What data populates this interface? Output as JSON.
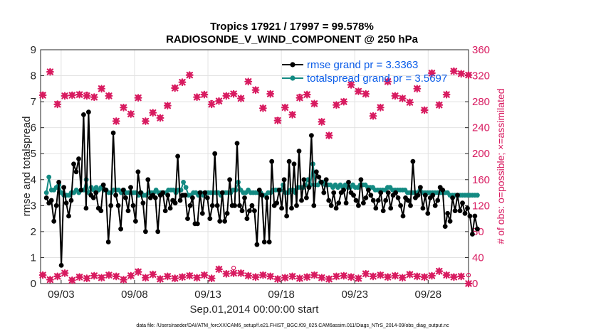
{
  "chart_data": {
    "type": "line",
    "title_line1": "Tropics 17921 / 17997 = 99.578%",
    "title_line2": "RADIOSONDE_V_WIND_COMPONENT @ 250 hPa",
    "xlabel": "Sep.01,2014 00:00:00 start",
    "ylabel_left": "rmse and totalspread",
    "ylabel_right": "# of obs: o=possible; ×=assimilated",
    "footer": "data file: /Users/raeder/DAI/ATM_forcXX/CAM6_setup/f.e21.FHIST_BGC.f09_025.CAM6assim.011/Diags_NTrS_2014-09/obs_diag_output.nc",
    "xlim": [
      1.6,
      30.75
    ],
    "ylim_left": [
      0,
      9
    ],
    "ylim_right": [
      0,
      360
    ],
    "x_ticks": [
      3,
      8,
      13,
      18,
      23,
      28
    ],
    "x_tick_labels": [
      "09/03",
      "09/08",
      "09/13",
      "09/18",
      "09/23",
      "09/28"
    ],
    "y_ticks_left": [
      "0",
      "1",
      "2",
      "3",
      "4",
      "5",
      "6",
      "7",
      "8",
      "9"
    ],
    "y_ticks_right": [
      "0",
      "40",
      "80",
      "120",
      "160",
      "200",
      "240",
      "280",
      "320",
      "360"
    ],
    "legend_location": "top-right",
    "colors": {
      "rmse": "#000000",
      "spread": "#138a82",
      "obs": "#d81b60",
      "legend_text": "#0a5ce8",
      "grid": "#e2e2e2"
    },
    "series": [
      {
        "name": "rmse grand pr = 3.3363",
        "values": [
          3.3,
          3.1,
          3.2,
          2.4,
          3.0,
          3.9,
          0.7,
          3.7,
          3.1,
          2.6,
          3.2,
          4.6,
          4.3,
          4.8,
          3.6,
          6.5,
          2.9,
          6.6,
          3.4,
          3.3,
          3.5,
          2.9,
          2.8,
          3.8,
          3.6,
          1.6,
          3.0,
          5.8,
          3.4,
          3.0,
          2.1,
          3.6,
          3.3,
          2.8,
          3.7,
          3.0,
          2.4,
          4.3,
          3.5,
          3.1,
          2.0,
          4.0,
          3.3,
          3.4,
          3.3,
          2.0,
          3.4,
          3.5,
          2.8,
          3.4,
          2.9,
          3.2,
          3.1,
          4.9,
          3.2,
          3.4,
          3.4,
          2.5,
          3.0,
          3.3,
          2.3,
          2.3,
          3.5,
          2.7,
          3.5,
          3.3,
          2.5,
          3.0,
          5.0,
          3.0,
          2.4,
          3.5,
          2.4,
          2.7,
          4.0,
          3.0,
          3.0,
          5.4,
          3.0,
          2.8,
          3.3,
          2.5,
          2.8,
          3.0,
          2.8,
          1.5,
          3.6,
          3.4,
          1.6,
          3.3,
          1.6,
          4.7,
          3.0,
          3.1,
          3.6,
          2.9,
          4.0,
          2.6,
          4.7,
          2.9,
          4.6,
          3.0,
          5.1,
          3.2,
          4.0,
          3.3,
          3.7,
          5.7,
          3.0,
          4.3,
          4.1,
          3.9,
          3.5,
          4.0,
          3.2,
          3.0,
          3.5,
          2.9,
          3.1,
          3.5,
          3.6,
          3.1,
          3.9,
          3.5,
          3.4,
          3.2,
          3.0,
          4.0,
          3.1,
          3.3,
          3.6,
          3.4,
          3.2,
          2.9,
          3.2,
          3.5,
          2.8,
          3.2,
          3.5,
          2.9,
          3.4,
          3.5,
          3.3,
          3.0,
          2.6,
          3.3,
          3.2,
          3.0,
          4.7,
          3.3,
          3.4,
          3.7,
          2.9,
          3.4,
          2.7,
          3.3,
          3.4,
          3.0,
          3.2,
          3.7,
          3.6,
          2.2,
          2.7,
          2.4,
          3.3,
          2.8,
          3.4,
          2.8,
          3.1,
          2.7,
          2.9,
          2.6,
          1.9,
          2.6,
          2.1
        ]
      },
      {
        "name": "totalspread grand pr = 3.5697",
        "values": [
          3.5,
          4.1,
          3.6,
          3.6,
          3.7,
          3.8,
          3.5,
          3.4,
          3.4,
          3.4,
          3.5,
          3.5,
          3.6,
          3.5,
          3.6,
          3.6,
          4.0,
          3.5,
          3.7,
          3.6,
          3.7,
          3.6,
          3.7,
          3.6,
          3.6,
          3.5,
          3.5,
          3.6,
          3.6,
          3.6,
          3.5,
          3.6,
          3.5,
          3.5,
          3.5,
          3.5,
          3.5,
          3.4,
          3.5,
          3.4,
          3.4,
          3.5,
          3.5,
          3.5,
          3.6,
          3.5,
          3.5,
          3.5,
          3.5,
          3.6,
          3.6,
          3.6,
          3.5,
          3.6,
          3.6,
          3.9,
          3.7,
          3.4,
          3.4,
          3.5,
          3.5,
          3.4,
          3.5,
          3.4,
          3.5,
          3.5,
          3.5,
          3.5,
          3.5,
          3.5,
          3.4,
          3.5,
          3.5,
          3.5,
          3.5,
          3.6,
          3.6,
          3.9,
          3.6,
          3.5,
          3.5,
          3.6,
          3.5,
          3.5,
          3.5,
          3.5,
          3.5,
          3.4,
          3.4,
          3.5,
          3.5,
          3.6,
          3.6,
          3.6,
          3.6,
          3.8,
          3.5,
          3.5,
          3.6,
          3.6,
          3.5,
          3.7,
          3.7,
          3.7,
          3.8,
          4.0,
          3.8,
          4.6,
          3.8,
          3.8,
          3.9,
          3.9,
          3.8,
          3.8,
          3.8,
          3.7,
          3.8,
          3.7,
          3.8,
          3.7,
          3.8,
          3.7,
          3.7,
          3.8,
          3.7,
          3.7,
          3.8,
          3.8,
          3.8,
          3.7,
          3.7,
          3.7,
          3.6,
          3.6,
          3.6,
          3.6,
          3.6,
          3.7,
          3.7,
          3.6,
          3.6,
          3.6,
          3.6,
          3.6,
          3.6,
          3.5,
          3.5,
          3.5,
          3.5,
          3.5,
          3.6,
          3.5,
          3.5,
          3.5,
          3.5,
          3.5,
          3.5,
          3.5,
          3.5,
          3.5,
          3.5,
          3.5,
          3.4,
          3.4,
          3.4,
          3.4,
          3.4,
          3.4,
          3.4,
          3.4,
          3.4,
          3.4,
          3.4,
          3.4
        ]
      },
      {
        "name": "obs possible (daily top)",
        "x": [
          1.75,
          2.25,
          2.75,
          3.25,
          3.75,
          4.25,
          4.75,
          5.25,
          5.75,
          6.25,
          6.75,
          7.25,
          7.75,
          8.25,
          8.75,
          9.25,
          9.75,
          10.25,
          10.75,
          11.25,
          11.75,
          12.25,
          12.75,
          13.25,
          13.75,
          14.25,
          14.75,
          15.25,
          15.75,
          16.25,
          16.75,
          17.25,
          17.75,
          18.25,
          18.75,
          19.25,
          19.75,
          20.25,
          20.75,
          21.25,
          21.75,
          22.25,
          22.75,
          23.25,
          23.75,
          24.25,
          24.75,
          25.25,
          25.75,
          26.25,
          26.75,
          27.25,
          27.75,
          28.25,
          28.75,
          29.25,
          29.75,
          30.25,
          30.75
        ],
        "values": [
          292,
          327,
          278,
          290,
          291,
          292,
          292,
          288,
          301,
          290,
          251,
          272,
          262,
          287,
          251,
          264,
          256,
          275,
          302,
          311,
          322,
          288,
          292,
          279,
          282,
          290,
          293,
          286,
          312,
          299,
          271,
          293,
          253,
          272,
          261,
          289,
          292,
          278,
          250,
          229,
          276,
          281,
          307,
          297,
          293,
          259,
          272,
          312,
          290,
          286,
          280,
          301,
          268,
          325,
          276,
          292,
          328,
          324,
          322
        ]
      },
      {
        "name": "obs assimilated (daily top)",
        "x": [
          1.75,
          2.25,
          2.75,
          3.25,
          3.75,
          4.25,
          4.75,
          5.25,
          5.75,
          6.25,
          6.75,
          7.25,
          7.75,
          8.25,
          8.75,
          9.25,
          9.75,
          10.25,
          10.75,
          11.25,
          11.75,
          12.25,
          12.75,
          13.25,
          13.75,
          14.25,
          14.75,
          15.25,
          15.75,
          16.25,
          16.75,
          17.25,
          17.75,
          18.25,
          18.75,
          19.25,
          19.75,
          20.25,
          20.75,
          21.25,
          21.75,
          22.25,
          22.75,
          23.25,
          23.75,
          24.25,
          24.75,
          25.25,
          25.75,
          26.25,
          26.75,
          27.25,
          27.75,
          28.25,
          28.75,
          29.25,
          29.75,
          30.25,
          30.75
        ],
        "values": [
          290,
          326,
          276,
          289,
          290,
          291,
          289,
          287,
          300,
          289,
          250,
          271,
          261,
          286,
          250,
          263,
          255,
          274,
          301,
          310,
          321,
          287,
          291,
          276,
          281,
          289,
          292,
          285,
          311,
          298,
          270,
          292,
          251,
          271,
          260,
          286,
          291,
          277,
          249,
          228,
          275,
          280,
          306,
          296,
          292,
          258,
          271,
          311,
          289,
          285,
          279,
          300,
          267,
          324,
          275,
          291,
          327,
          323,
          321
        ]
      },
      {
        "name": "obs possible (daily bottom)",
        "x": [
          1.75,
          2.25,
          2.75,
          3.25,
          3.75,
          4.25,
          4.75,
          5.25,
          5.75,
          6.25,
          6.75,
          7.25,
          7.75,
          8.25,
          8.75,
          9.25,
          9.75,
          10.25,
          10.75,
          11.25,
          11.75,
          12.25,
          12.75,
          13.25,
          13.75,
          14.25,
          14.75,
          15.25,
          15.75,
          16.25,
          16.75,
          17.25,
          17.75,
          18.25,
          18.75,
          19.25,
          19.75,
          20.25,
          20.75,
          21.25,
          21.75,
          22.25,
          22.75,
          23.25,
          23.75,
          24.25,
          24.75,
          25.25,
          25.75,
          26.25,
          26.75,
          27.25,
          27.75,
          28.25,
          28.75,
          29.25,
          29.75,
          30.25,
          30.75
        ],
        "values": [
          14,
          7,
          12,
          17,
          6,
          11,
          9,
          13,
          10,
          14,
          12,
          7,
          13,
          19,
          10,
          15,
          8,
          12,
          9,
          11,
          13,
          10,
          14,
          9,
          23,
          16,
          24,
          17,
          13,
          11,
          14,
          12,
          8,
          10,
          12,
          9,
          11,
          14,
          10,
          8,
          12,
          13,
          11,
          9,
          16,
          12,
          14,
          11,
          13,
          10,
          15,
          12,
          11,
          13,
          20,
          14,
          11,
          12,
          13
        ]
      },
      {
        "name": "obs assimilated (daily bottom)",
        "x": [
          1.75,
          2.25,
          2.75,
          3.25,
          3.75,
          4.25,
          4.75,
          5.25,
          5.75,
          6.25,
          6.75,
          7.25,
          7.75,
          8.25,
          8.75,
          9.25,
          9.75,
          10.25,
          10.75,
          11.25,
          11.75,
          12.25,
          12.75,
          13.25,
          13.75,
          14.25,
          14.75,
          15.25,
          15.75,
          16.25,
          16.75,
          17.25,
          17.75,
          18.25,
          18.75,
          19.25,
          19.75,
          20.25,
          20.75,
          21.25,
          21.75,
          22.25,
          22.75,
          23.25,
          23.75,
          24.25,
          24.75,
          25.25,
          25.75,
          26.25,
          26.75,
          27.25,
          27.75,
          28.25,
          28.75,
          29.25,
          29.75,
          30.25,
          30.75
        ],
        "values": [
          13,
          6,
          11,
          16,
          5,
          10,
          8,
          12,
          9,
          13,
          11,
          6,
          12,
          18,
          9,
          14,
          7,
          11,
          8,
          10,
          12,
          9,
          13,
          8,
          22,
          15,
          16,
          16,
          12,
          10,
          13,
          11,
          7,
          9,
          11,
          8,
          10,
          13,
          9,
          7,
          11,
          12,
          10,
          8,
          15,
          11,
          13,
          10,
          12,
          9,
          14,
          11,
          10,
          12,
          19,
          13,
          10,
          11,
          0
        ]
      }
    ]
  }
}
